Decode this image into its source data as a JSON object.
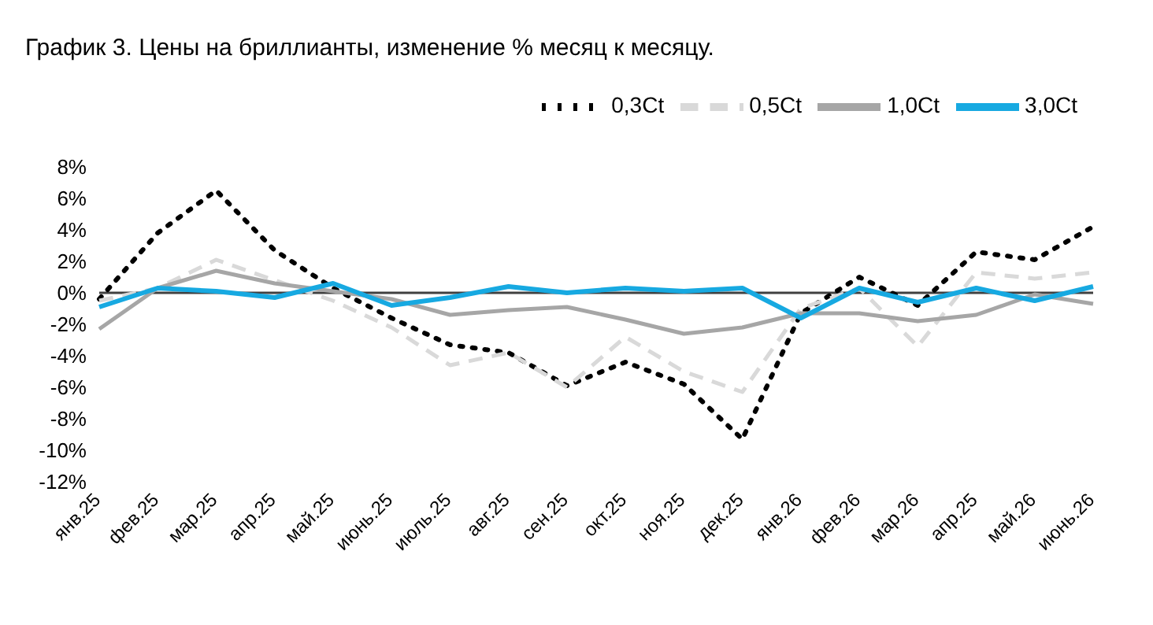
{
  "chart_data": {
    "type": "line",
    "title": "График 3. Цены на бриллианты, изменение % месяц к месяцу.",
    "categories": [
      "янв.25",
      "фев.25",
      "мар.25",
      "апр.25",
      "май.25",
      "июнь.25",
      "июль.25",
      "авг.25",
      "сен.25",
      "окт.25",
      "ноя.25",
      "дек.25",
      "янв.26",
      "фев.26",
      "мар.26",
      "апр.25",
      "май.26",
      "июнь.26"
    ],
    "series": [
      {
        "name": "0,3Ct",
        "color": "#000000",
        "line_style": "dotted",
        "values": [
          -0.4,
          3.8,
          6.5,
          2.7,
          0.3,
          -1.6,
          -3.3,
          -3.8,
          -5.9,
          -4.4,
          -5.8,
          -9.3,
          -1.3,
          1.0,
          -0.8,
          2.6,
          2.1,
          4.2
        ]
      },
      {
        "name": "0,5Ct",
        "color": "#d9d9d9",
        "line_style": "dashed",
        "values": [
          -0.5,
          0.3,
          2.1,
          0.8,
          -0.5,
          -2.2,
          -4.6,
          -3.8,
          -6.0,
          -2.8,
          -5.0,
          -6.3,
          -1.0,
          0.3,
          -3.4,
          1.3,
          0.9,
          1.3
        ]
      },
      {
        "name": "1,0Ct",
        "color": "#a6a6a6",
        "line_style": "solid",
        "values": [
          -2.3,
          0.3,
          1.4,
          0.6,
          0.1,
          -0.4,
          -1.4,
          -1.1,
          -0.9,
          -1.7,
          -2.6,
          -2.2,
          -1.3,
          -1.3,
          -1.8,
          -1.4,
          -0.1,
          -0.7
        ]
      },
      {
        "name": "3,0Ct",
        "color": "#17a9e1",
        "line_style": "solid",
        "values": [
          -0.9,
          0.3,
          0.1,
          -0.3,
          0.6,
          -0.8,
          -0.3,
          0.4,
          0.0,
          0.3,
          0.1,
          0.3,
          -1.6,
          0.3,
          -0.6,
          0.3,
          -0.5,
          0.4
        ]
      }
    ],
    "ylim": [
      -12,
      8
    ],
    "yticks": [
      {
        "value": -12,
        "label": "-12%"
      },
      {
        "value": -10,
        "label": "-10%"
      },
      {
        "value": -8,
        "label": "-8%"
      },
      {
        "value": -6,
        "label": "-6%"
      },
      {
        "value": -4,
        "label": "-4%"
      },
      {
        "value": -2,
        "label": "-2%"
      },
      {
        "value": 0,
        "label": "0%"
      },
      {
        "value": 2,
        "label": "2%"
      },
      {
        "value": 4,
        "label": "4%"
      },
      {
        "value": 6,
        "label": "6%"
      },
      {
        "value": 8,
        "label": "8%"
      }
    ],
    "ref_lines": [
      {
        "axis": "y",
        "value": 0,
        "color": "#404040"
      }
    ],
    "grid": false,
    "legend": "top right",
    "marker": "none"
  }
}
